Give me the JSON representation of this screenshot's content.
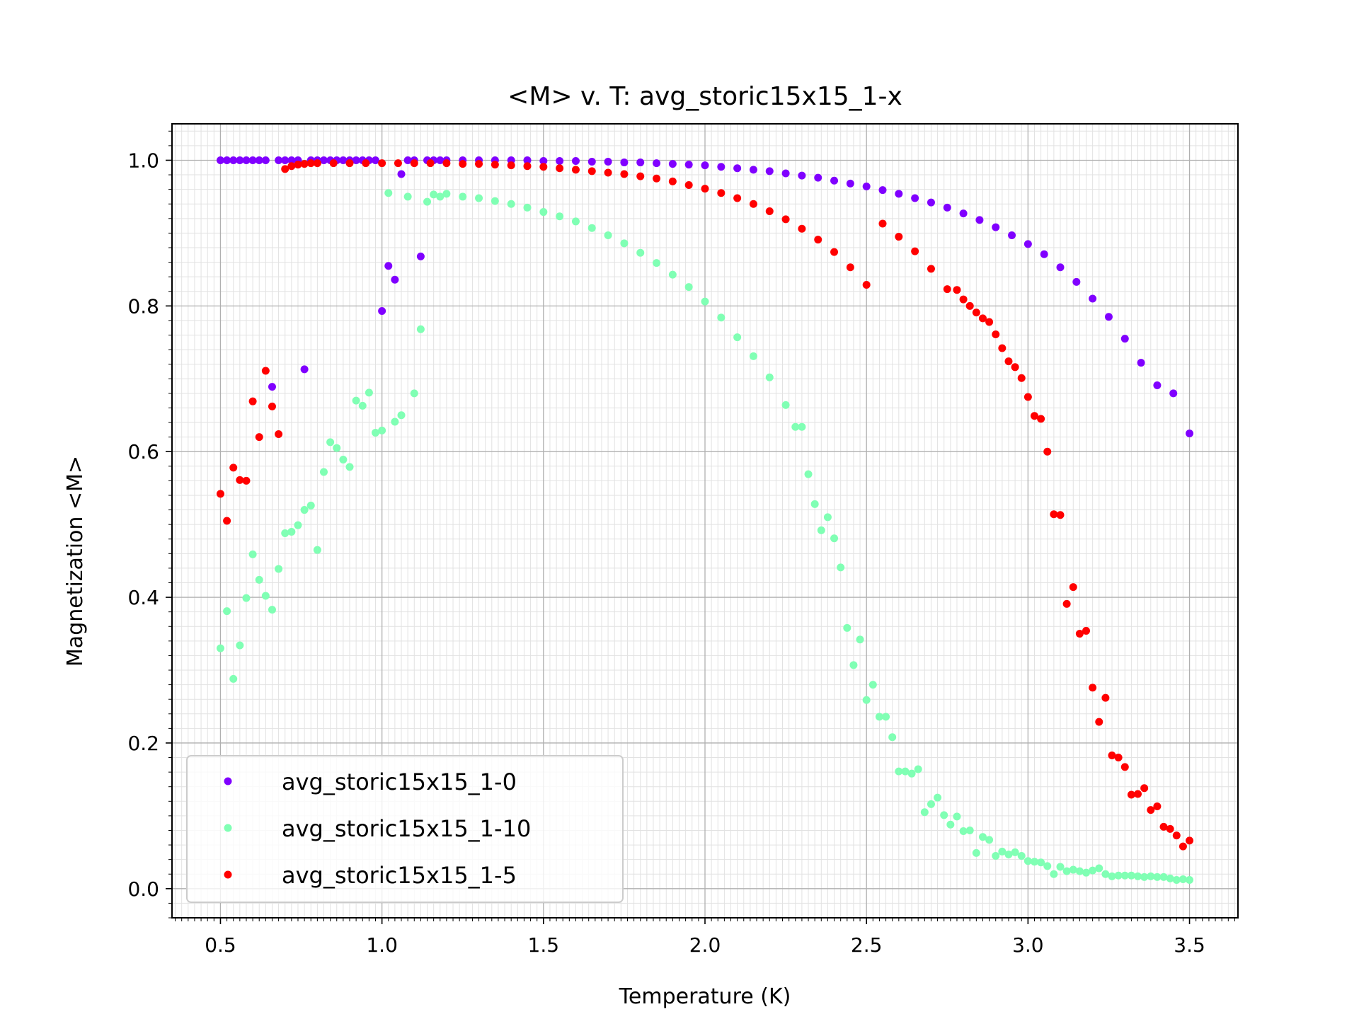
{
  "chart_data": {
    "type": "scatter",
    "title": "<M> v. T: avg_storic15x15_1-x",
    "xlabel": "Temperature (K)",
    "ylabel": "Magnetization <M>",
    "xlim": [
      0.35,
      3.65
    ],
    "ylim": [
      -0.04,
      1.05
    ],
    "xticks": [
      0.5,
      1.0,
      1.5,
      2.0,
      2.5,
      3.0,
      3.5
    ],
    "xtick_labels": [
      "0.5",
      "1.0",
      "1.5",
      "2.0",
      "2.5",
      "3.0",
      "3.5"
    ],
    "yticks": [
      0.0,
      0.2,
      0.4,
      0.6,
      0.8,
      1.0
    ],
    "ytick_labels": [
      "0.0",
      "0.2",
      "0.4",
      "0.6",
      "0.8",
      "1.0"
    ],
    "grid": "major and minor",
    "legend_position": "lower-left",
    "series": [
      {
        "name": "avg_storic15x15_1-0",
        "color": "#8000ff",
        "points": [
          [
            0.5,
            1.0
          ],
          [
            0.52,
            1.0
          ],
          [
            0.54,
            1.0
          ],
          [
            0.56,
            1.0
          ],
          [
            0.58,
            1.0
          ],
          [
            0.6,
            1.0
          ],
          [
            0.62,
            1.0
          ],
          [
            0.64,
            1.0
          ],
          [
            0.66,
            0.689
          ],
          [
            0.68,
            1.0
          ],
          [
            0.7,
            1.0
          ],
          [
            0.72,
            1.0
          ],
          [
            0.74,
            1.0
          ],
          [
            0.76,
            0.713
          ],
          [
            0.78,
            1.0
          ],
          [
            0.8,
            1.0
          ],
          [
            0.82,
            1.0
          ],
          [
            0.84,
            1.0
          ],
          [
            0.86,
            1.0
          ],
          [
            0.88,
            1.0
          ],
          [
            0.9,
            1.0
          ],
          [
            0.92,
            1.0
          ],
          [
            0.94,
            1.0
          ],
          [
            0.96,
            1.0
          ],
          [
            0.98,
            1.0
          ],
          [
            1.0,
            0.793
          ],
          [
            1.02,
            0.855
          ],
          [
            1.04,
            0.836
          ],
          [
            1.06,
            0.981
          ],
          [
            1.08,
            1.0
          ],
          [
            1.1,
            1.0
          ],
          [
            1.12,
            0.868
          ],
          [
            1.14,
            1.0
          ],
          [
            1.16,
            1.0
          ],
          [
            1.18,
            1.0
          ],
          [
            1.2,
            1.0
          ],
          [
            1.25,
            1.0
          ],
          [
            1.3,
            1.0
          ],
          [
            1.35,
            1.0
          ],
          [
            1.4,
            1.0
          ],
          [
            1.45,
            1.0
          ],
          [
            1.5,
            0.999
          ],
          [
            1.55,
            0.999
          ],
          [
            1.6,
            0.999
          ],
          [
            1.65,
            0.998
          ],
          [
            1.7,
            0.998
          ],
          [
            1.75,
            0.997
          ],
          [
            1.8,
            0.997
          ],
          [
            1.85,
            0.996
          ],
          [
            1.9,
            0.995
          ],
          [
            1.95,
            0.994
          ],
          [
            2.0,
            0.993
          ],
          [
            2.05,
            0.991
          ],
          [
            2.1,
            0.989
          ],
          [
            2.15,
            0.987
          ],
          [
            2.2,
            0.985
          ],
          [
            2.25,
            0.982
          ],
          [
            2.3,
            0.979
          ],
          [
            2.35,
            0.976
          ],
          [
            2.4,
            0.972
          ],
          [
            2.45,
            0.968
          ],
          [
            2.5,
            0.964
          ],
          [
            2.55,
            0.959
          ],
          [
            2.6,
            0.954
          ],
          [
            2.65,
            0.948
          ],
          [
            2.7,
            0.942
          ],
          [
            2.75,
            0.935
          ],
          [
            2.8,
            0.927
          ],
          [
            2.85,
            0.918
          ],
          [
            2.9,
            0.908
          ],
          [
            2.95,
            0.897
          ],
          [
            3.0,
            0.885
          ],
          [
            3.05,
            0.871
          ],
          [
            3.1,
            0.853
          ],
          [
            3.15,
            0.833
          ],
          [
            3.2,
            0.81
          ],
          [
            3.25,
            0.785
          ],
          [
            3.3,
            0.755
          ],
          [
            3.35,
            0.722
          ],
          [
            3.4,
            0.691
          ],
          [
            3.45,
            0.68
          ],
          [
            3.5,
            0.625
          ]
        ]
      },
      {
        "name": "avg_storic15x15_1-10",
        "color": "#80ffb4",
        "points": [
          [
            0.5,
            0.33
          ],
          [
            0.52,
            0.381
          ],
          [
            0.54,
            0.288
          ],
          [
            0.56,
            0.334
          ],
          [
            0.58,
            0.399
          ],
          [
            0.6,
            0.459
          ],
          [
            0.62,
            0.424
          ],
          [
            0.64,
            0.402
          ],
          [
            0.66,
            0.383
          ],
          [
            0.68,
            0.439
          ],
          [
            0.7,
            0.488
          ],
          [
            0.72,
            0.49
          ],
          [
            0.74,
            0.499
          ],
          [
            0.76,
            0.52
          ],
          [
            0.78,
            0.526
          ],
          [
            0.8,
            0.465
          ],
          [
            0.82,
            0.572
          ],
          [
            0.84,
            0.613
          ],
          [
            0.86,
            0.605
          ],
          [
            0.88,
            0.589
          ],
          [
            0.9,
            0.579
          ],
          [
            0.92,
            0.67
          ],
          [
            0.94,
            0.663
          ],
          [
            0.96,
            0.681
          ],
          [
            0.98,
            0.626
          ],
          [
            1.0,
            0.629
          ],
          [
            1.02,
            0.955
          ],
          [
            1.04,
            0.641
          ],
          [
            1.06,
            0.65
          ],
          [
            1.08,
            0.95
          ],
          [
            1.1,
            0.68
          ],
          [
            1.12,
            0.768
          ],
          [
            1.14,
            0.943
          ],
          [
            1.16,
            0.953
          ],
          [
            1.18,
            0.95
          ],
          [
            1.2,
            0.954
          ],
          [
            1.25,
            0.95
          ],
          [
            1.3,
            0.948
          ],
          [
            1.35,
            0.944
          ],
          [
            1.4,
            0.94
          ],
          [
            1.45,
            0.935
          ],
          [
            1.5,
            0.929
          ],
          [
            1.55,
            0.923
          ],
          [
            1.6,
            0.916
          ],
          [
            1.65,
            0.907
          ],
          [
            1.7,
            0.897
          ],
          [
            1.75,
            0.886
          ],
          [
            1.8,
            0.873
          ],
          [
            1.85,
            0.859
          ],
          [
            1.9,
            0.843
          ],
          [
            1.95,
            0.826
          ],
          [
            2.0,
            0.806
          ],
          [
            2.05,
            0.784
          ],
          [
            2.1,
            0.757
          ],
          [
            2.15,
            0.731
          ],
          [
            2.2,
            0.702
          ],
          [
            2.25,
            0.664
          ],
          [
            2.28,
            0.634
          ],
          [
            2.3,
            0.634
          ],
          [
            2.32,
            0.569
          ],
          [
            2.34,
            0.528
          ],
          [
            2.36,
            0.492
          ],
          [
            2.38,
            0.51
          ],
          [
            2.4,
            0.481
          ],
          [
            2.42,
            0.441
          ],
          [
            2.44,
            0.358
          ],
          [
            2.46,
            0.307
          ],
          [
            2.48,
            0.342
          ],
          [
            2.5,
            0.259
          ],
          [
            2.52,
            0.28
          ],
          [
            2.54,
            0.236
          ],
          [
            2.56,
            0.236
          ],
          [
            2.58,
            0.208
          ],
          [
            2.6,
            0.161
          ],
          [
            2.62,
            0.161
          ],
          [
            2.64,
            0.158
          ],
          [
            2.66,
            0.164
          ],
          [
            2.68,
            0.105
          ],
          [
            2.7,
            0.116
          ],
          [
            2.72,
            0.125
          ],
          [
            2.74,
            0.101
          ],
          [
            2.76,
            0.088
          ],
          [
            2.78,
            0.099
          ],
          [
            2.8,
            0.079
          ],
          [
            2.82,
            0.08
          ],
          [
            2.84,
            0.049
          ],
          [
            2.86,
            0.071
          ],
          [
            2.88,
            0.067
          ],
          [
            2.9,
            0.045
          ],
          [
            2.92,
            0.051
          ],
          [
            2.94,
            0.047
          ],
          [
            2.96,
            0.05
          ],
          [
            2.98,
            0.045
          ],
          [
            3.0,
            0.038
          ],
          [
            3.02,
            0.037
          ],
          [
            3.04,
            0.036
          ],
          [
            3.06,
            0.031
          ],
          [
            3.08,
            0.02
          ],
          [
            3.1,
            0.03
          ],
          [
            3.12,
            0.024
          ],
          [
            3.14,
            0.026
          ],
          [
            3.16,
            0.024
          ],
          [
            3.18,
            0.022
          ],
          [
            3.2,
            0.025
          ],
          [
            3.22,
            0.028
          ],
          [
            3.24,
            0.02
          ],
          [
            3.26,
            0.017
          ],
          [
            3.28,
            0.018
          ],
          [
            3.3,
            0.018
          ],
          [
            3.32,
            0.018
          ],
          [
            3.34,
            0.017
          ],
          [
            3.36,
            0.016
          ],
          [
            3.38,
            0.017
          ],
          [
            3.4,
            0.016
          ],
          [
            3.42,
            0.016
          ],
          [
            3.44,
            0.014
          ],
          [
            3.46,
            0.012
          ],
          [
            3.48,
            0.013
          ],
          [
            3.5,
            0.012
          ]
        ]
      },
      {
        "name": "avg_storic15x15_1-5",
        "color": "#ff0000",
        "points": [
          [
            0.5,
            0.542
          ],
          [
            0.52,
            0.505
          ],
          [
            0.54,
            0.578
          ],
          [
            0.56,
            0.561
          ],
          [
            0.58,
            0.56
          ],
          [
            0.6,
            0.669
          ],
          [
            0.62,
            0.62
          ],
          [
            0.64,
            0.711
          ],
          [
            0.66,
            0.662
          ],
          [
            0.68,
            0.624
          ],
          [
            0.7,
            0.988
          ],
          [
            0.72,
            0.992
          ],
          [
            0.74,
            0.994
          ],
          [
            0.76,
            0.995
          ],
          [
            0.78,
            0.996
          ],
          [
            0.8,
            0.996
          ],
          [
            0.85,
            0.996
          ],
          [
            0.9,
            0.996
          ],
          [
            0.95,
            0.996
          ],
          [
            1.0,
            0.996
          ],
          [
            1.05,
            0.996
          ],
          [
            1.1,
            0.996
          ],
          [
            1.15,
            0.996
          ],
          [
            1.2,
            0.996
          ],
          [
            1.25,
            0.995
          ],
          [
            1.3,
            0.995
          ],
          [
            1.35,
            0.994
          ],
          [
            1.4,
            0.993
          ],
          [
            1.45,
            0.992
          ],
          [
            1.5,
            0.991
          ],
          [
            1.55,
            0.989
          ],
          [
            1.6,
            0.987
          ],
          [
            1.65,
            0.985
          ],
          [
            1.7,
            0.983
          ],
          [
            1.75,
            0.981
          ],
          [
            1.8,
            0.978
          ],
          [
            1.85,
            0.975
          ],
          [
            1.9,
            0.971
          ],
          [
            1.95,
            0.966
          ],
          [
            2.0,
            0.961
          ],
          [
            2.05,
            0.955
          ],
          [
            2.1,
            0.948
          ],
          [
            2.15,
            0.94
          ],
          [
            2.2,
            0.93
          ],
          [
            2.25,
            0.919
          ],
          [
            2.3,
            0.906
          ],
          [
            2.35,
            0.891
          ],
          [
            2.4,
            0.874
          ],
          [
            2.45,
            0.853
          ],
          [
            2.5,
            0.829
          ],
          [
            2.55,
            0.913
          ],
          [
            2.6,
            0.895
          ],
          [
            2.65,
            0.875
          ],
          [
            2.7,
            0.851
          ],
          [
            2.75,
            0.823
          ],
          [
            2.78,
            0.822
          ],
          [
            2.8,
            0.809
          ],
          [
            2.82,
            0.8
          ],
          [
            2.84,
            0.791
          ],
          [
            2.86,
            0.783
          ],
          [
            2.88,
            0.778
          ],
          [
            2.9,
            0.761
          ],
          [
            2.92,
            0.742
          ],
          [
            2.94,
            0.724
          ],
          [
            2.96,
            0.716
          ],
          [
            2.98,
            0.701
          ],
          [
            3.0,
            0.675
          ],
          [
            3.02,
            0.649
          ],
          [
            3.04,
            0.645
          ],
          [
            3.06,
            0.6
          ],
          [
            3.08,
            0.514
          ],
          [
            3.1,
            0.513
          ],
          [
            3.12,
            0.391
          ],
          [
            3.14,
            0.414
          ],
          [
            3.16,
            0.35
          ],
          [
            3.18,
            0.354
          ],
          [
            3.2,
            0.276
          ],
          [
            3.22,
            0.229
          ],
          [
            3.24,
            0.262
          ],
          [
            3.26,
            0.183
          ],
          [
            3.28,
            0.18
          ],
          [
            3.3,
            0.167
          ],
          [
            3.32,
            0.129
          ],
          [
            3.34,
            0.13
          ],
          [
            3.36,
            0.138
          ],
          [
            3.38,
            0.108
          ],
          [
            3.4,
            0.113
          ],
          [
            3.42,
            0.085
          ],
          [
            3.44,
            0.082
          ],
          [
            3.46,
            0.073
          ],
          [
            3.48,
            0.058
          ],
          [
            3.5,
            0.066
          ]
        ]
      }
    ]
  }
}
